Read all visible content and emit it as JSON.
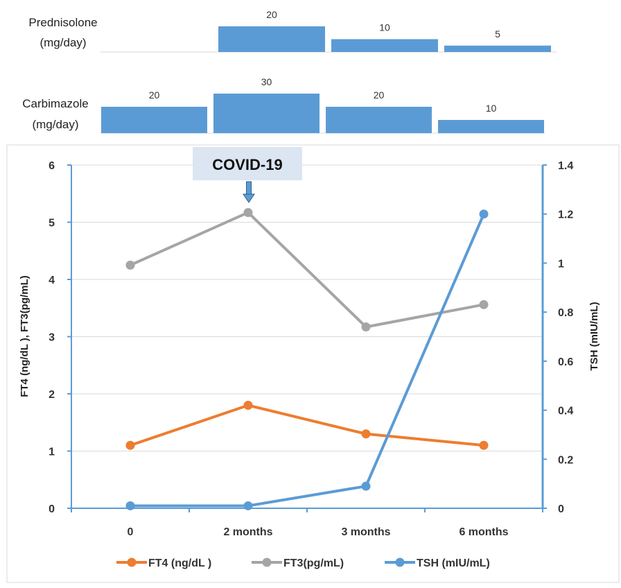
{
  "dose_charts": [
    {
      "label_lines": [
        "Prednisolone",
        "(mg/day)"
      ],
      "values": [
        null,
        20,
        10,
        5
      ],
      "value_labels": [
        "",
        "20",
        "10",
        "5"
      ],
      "color": "#5b9bd5"
    },
    {
      "label_lines": [
        "Carbimazole",
        "(mg/day)"
      ],
      "values": [
        20,
        30,
        20,
        10
      ],
      "value_labels": [
        "20",
        "30",
        "20",
        "10"
      ],
      "color": "#5b9bd5"
    }
  ],
  "chart_data": {
    "type": "line",
    "categories": [
      "0",
      "2 months",
      "3 months",
      "6 months"
    ],
    "series": [
      {
        "name": "FT4 (ng/dL )",
        "axis": "left",
        "color": "#ed7d31",
        "values": [
          1.1,
          1.8,
          1.3,
          1.1
        ]
      },
      {
        "name": "FT3(pg/mL)",
        "axis": "left",
        "color": "#a5a5a5",
        "values": [
          4.25,
          5.17,
          3.17,
          3.56
        ]
      },
      {
        "name": "TSH (mIU/mL)",
        "axis": "right",
        "color": "#5b9bd5",
        "values": [
          0.01,
          0.01,
          0.09,
          1.2
        ]
      }
    ],
    "ylabel": "FT4 (ng/dL ), FT3(pg/mL)",
    "y2label": "TSH (mIU/mL)",
    "ylim": [
      0,
      6
    ],
    "y2lim": [
      0,
      1.4
    ],
    "yticks": [
      "0",
      "1",
      "2",
      "3",
      "4",
      "5",
      "6"
    ],
    "y2ticks": [
      "0",
      "0.2",
      "0.4",
      "0.6",
      "0.8",
      "1",
      "1.2",
      "1.4"
    ],
    "grid": true,
    "legend": "bottom",
    "annotation": {
      "text": "COVID-19",
      "category": "2 months"
    }
  }
}
